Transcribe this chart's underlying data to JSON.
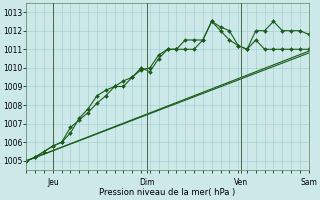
{
  "xlabel": "Pression niveau de la mer( hPa )",
  "bg_color": "#cce8e8",
  "grid_color": "#99cccc",
  "line_color": "#1a5c1a",
  "ylim": [
    1004.5,
    1013.5
  ],
  "yticks": [
    1005,
    1006,
    1007,
    1008,
    1009,
    1010,
    1011,
    1012,
    1013
  ],
  "xlim": [
    0,
    192
  ],
  "day_tick_vals": [
    18,
    82,
    146,
    192
  ],
  "day_labels": [
    "Jeu",
    "Dim",
    "Ven",
    "Sam"
  ],
  "vline_x": [
    18,
    82,
    146,
    192
  ],
  "series": [
    {
      "x": [
        0,
        6,
        12,
        18,
        24,
        30,
        36,
        42,
        48,
        54,
        60,
        66,
        72,
        78,
        84,
        90,
        96,
        102,
        108,
        114,
        120,
        126,
        132,
        138,
        144,
        150,
        156,
        162,
        168,
        174,
        180,
        186,
        192
      ],
      "y": [
        1005.0,
        1005.2,
        1005.5,
        1005.8,
        1006.0,
        1006.8,
        1007.2,
        1007.6,
        1008.1,
        1008.5,
        1009.0,
        1009.3,
        1009.5,
        1009.9,
        1010.0,
        1010.7,
        1011.0,
        1011.0,
        1011.5,
        1011.5,
        1011.5,
        1012.5,
        1012.2,
        1012.0,
        1011.2,
        1011.0,
        1012.0,
        1012.0,
        1012.5,
        1012.0,
        1012.0,
        1012.0,
        1011.8
      ],
      "marker": "D",
      "ms": 2.0,
      "lw": 0.8
    },
    {
      "x": [
        0,
        6,
        12,
        18,
        24,
        30,
        36,
        42,
        48,
        54,
        60,
        66,
        72,
        78,
        84,
        90,
        96,
        102,
        108,
        114,
        120,
        126,
        132,
        138,
        144,
        150,
        156,
        162,
        168,
        174,
        180,
        186,
        192
      ],
      "y": [
        1005.0,
        1005.2,
        1005.5,
        1005.8,
        1006.0,
        1006.5,
        1007.3,
        1007.8,
        1008.5,
        1008.8,
        1009.0,
        1009.0,
        1009.5,
        1010.0,
        1009.8,
        1010.5,
        1011.0,
        1011.0,
        1011.0,
        1011.0,
        1011.5,
        1012.5,
        1012.0,
        1011.5,
        1011.2,
        1011.0,
        1011.5,
        1011.0,
        1011.0,
        1011.0,
        1011.0,
        1011.0,
        1011.0
      ],
      "marker": "D",
      "ms": 2.0,
      "lw": 0.8
    },
    {
      "x": [
        0,
        192
      ],
      "y": [
        1005.0,
        1010.8
      ],
      "marker": null,
      "ms": 0,
      "lw": 0.8
    },
    {
      "x": [
        0,
        192
      ],
      "y": [
        1005.0,
        1010.9
      ],
      "marker": null,
      "ms": 0,
      "lw": 0.8
    }
  ]
}
